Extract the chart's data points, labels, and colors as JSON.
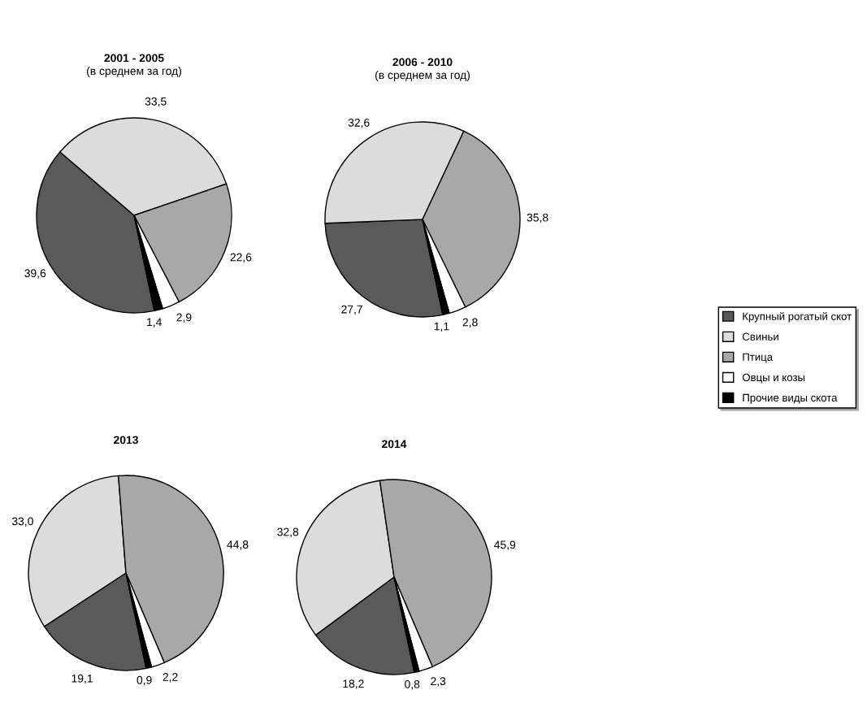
{
  "chart_data": [
    {
      "type": "pie",
      "title": "2001 - 2005",
      "subtitle": "(в среднем за год)",
      "categories": [
        "Крупный рогатый скот",
        "Свиньи",
        "Птица",
        "Овцы и козы",
        "Прочие виды скота"
      ],
      "values": [
        39.6,
        33.5,
        22.6,
        2.9,
        1.4
      ],
      "value_labels": [
        "39,6",
        "33,5",
        "22,6",
        "2,9",
        "1,4"
      ],
      "colors": [
        "#5a5a5a",
        "#dcdcdc",
        "#a8a8a8",
        "#ffffff",
        "#000000"
      ],
      "legend": "right"
    },
    {
      "type": "pie",
      "title": "2006 - 2010",
      "subtitle": "(в среднем за год)",
      "categories": [
        null,
        null,
        null,
        null,
        null
      ],
      "values": [
        27.7,
        32.6,
        35.8,
        2.8,
        1.1
      ],
      "value_labels": [
        "27,7",
        "32,6",
        "35,8",
        "2,8",
        "1,1"
      ],
      "colors": [
        "#5a5a5a",
        "#dcdcdc",
        "#a8a8a8",
        "#ffffff",
        "#000000"
      ]
    },
    {
      "type": "pie",
      "title": "2013",
      "categories": [
        null,
        null,
        null,
        null,
        null
      ],
      "values": [
        19.1,
        33.0,
        44.8,
        2.2,
        0.9
      ],
      "value_labels": [
        "19,1",
        "33,0",
        "44,8",
        "2,2",
        "0,9"
      ],
      "colors": [
        "#5a5a5a",
        "#dcdcdc",
        "#a8a8a8",
        "#ffffff",
        "#000000"
      ]
    },
    {
      "type": "pie",
      "title": "2014",
      "categories": [
        null,
        null,
        null,
        null,
        null
      ],
      "values": [
        18.2,
        32.8,
        45.9,
        2.3,
        0.8
      ],
      "value_labels": [
        "18,2",
        "32,8",
        "45,9",
        "2,3",
        "0,8"
      ],
      "colors": [
        "#5a5a5a",
        "#dcdcdc",
        "#a8a8a8",
        "#ffffff",
        "#000000"
      ]
    }
  ]
}
